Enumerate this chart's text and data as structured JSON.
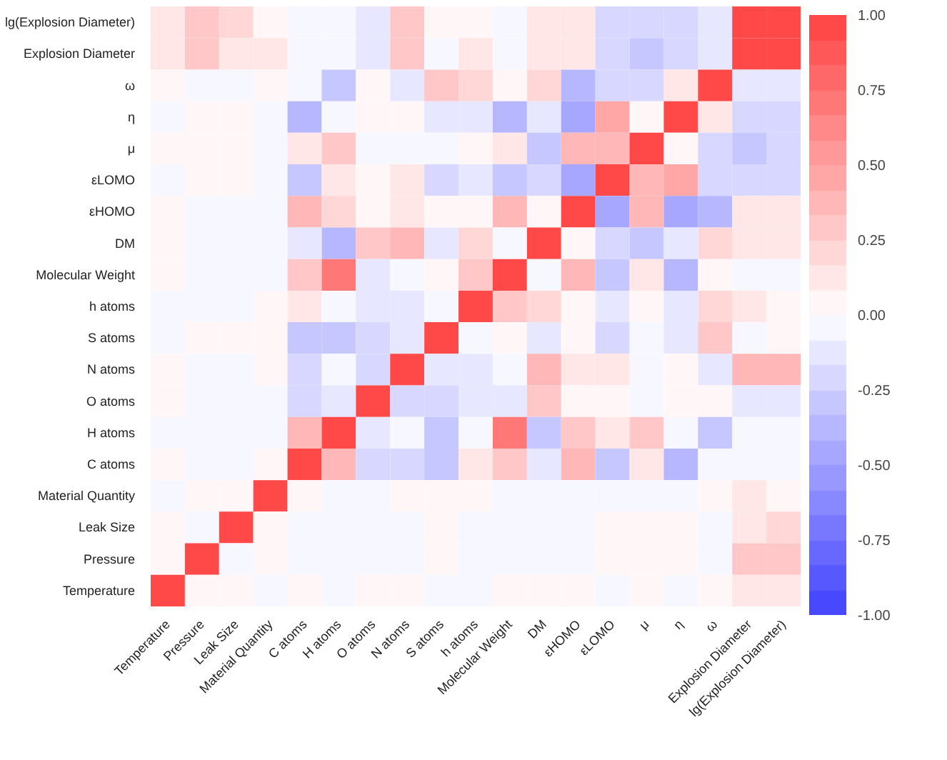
{
  "chart_data": {
    "type": "heatmap",
    "categories": [
      "Temperature",
      "Pressure",
      "Leak Size",
      "Material Quantity",
      "C atoms",
      "H atoms",
      "O atoms",
      "N atoms",
      "S atoms",
      "h atoms",
      "Molecular Weight",
      "DM",
      "εHOMO",
      "εLOMO",
      "μ",
      "η",
      "ω",
      "Explosion Diameter",
      "lg(Explosion Diameter)"
    ],
    "y_categories": [
      "lg(Explosion Diameter)",
      "Explosion Diameter",
      "ω",
      "η",
      "μ",
      "εLOMO",
      "εHOMO",
      "DM",
      "Molecular Weight",
      "h atoms",
      "S atoms",
      "N atoms",
      "O atoms",
      "H atoms",
      "C atoms",
      "Material Quantity",
      "Leak Size",
      "Pressure",
      "Temperature"
    ],
    "cells": [
      [
        0.13,
        0.29,
        0.21,
        0.04,
        -0.04,
        -0.04,
        -0.13,
        0.29,
        0.04,
        0.04,
        -0.04,
        0.13,
        0.13,
        -0.21,
        -0.21,
        -0.21,
        -0.13,
        0.92,
        1
      ],
      [
        0.13,
        0.29,
        0.13,
        0.13,
        -0.04,
        -0.04,
        -0.13,
        0.29,
        -0.04,
        0.13,
        -0.04,
        0.13,
        0.13,
        -0.21,
        -0.29,
        -0.21,
        -0.13,
        1,
        0.92
      ],
      [
        0.04,
        -0.04,
        -0.04,
        0.04,
        -0.04,
        -0.29,
        0.04,
        -0.13,
        0.29,
        0.21,
        0.04,
        0.21,
        -0.38,
        -0.21,
        -0.21,
        0.13,
        1,
        -0.13,
        -0.13
      ],
      [
        -0.04,
        0.04,
        0.04,
        -0.04,
        -0.38,
        -0.04,
        0.04,
        0.04,
        -0.13,
        -0.13,
        -0.38,
        -0.13,
        -0.46,
        0.46,
        0.04,
        1,
        0.13,
        -0.21,
        -0.21
      ],
      [
        0.04,
        0.04,
        0.04,
        -0.04,
        0.13,
        0.29,
        -0.04,
        -0.04,
        -0.04,
        0.04,
        0.13,
        -0.29,
        0.38,
        0.38,
        1,
        0.04,
        -0.21,
        -0.29,
        -0.21
      ],
      [
        -0.04,
        0.04,
        0.04,
        -0.04,
        -0.29,
        0.13,
        0.04,
        0.13,
        -0.21,
        -0.13,
        -0.29,
        -0.21,
        -0.46,
        1,
        0.38,
        0.46,
        -0.21,
        -0.21,
        -0.21
      ],
      [
        0.04,
        -0.04,
        -0.04,
        -0.04,
        0.38,
        0.21,
        0.04,
        0.13,
        0.04,
        0.04,
        0.38,
        0.04,
        1,
        -0.46,
        0.38,
        -0.46,
        -0.38,
        0.13,
        0.13
      ],
      [
        0.04,
        -0.04,
        -0.04,
        -0.04,
        -0.13,
        -0.38,
        0.29,
        0.38,
        -0.13,
        0.21,
        -0.04,
        1,
        0.04,
        -0.21,
        -0.29,
        -0.13,
        0.21,
        0.13,
        0.13
      ],
      [
        0.04,
        -0.04,
        -0.04,
        -0.04,
        0.29,
        0.71,
        -0.13,
        -0.04,
        0.04,
        0.29,
        1,
        -0.04,
        0.38,
        -0.29,
        0.13,
        -0.38,
        0.04,
        -0.04,
        -0.04
      ],
      [
        -0.04,
        -0.04,
        -0.04,
        0.04,
        0.13,
        -0.04,
        -0.13,
        -0.13,
        -0.04,
        1,
        0.29,
        0.21,
        0.04,
        -0.13,
        0.04,
        -0.13,
        0.21,
        0.13,
        0.04
      ],
      [
        -0.04,
        0.04,
        0.04,
        0.04,
        -0.29,
        -0.29,
        -0.21,
        -0.13,
        1,
        -0.04,
        0.04,
        -0.13,
        0.04,
        -0.21,
        -0.04,
        -0.13,
        0.29,
        -0.04,
        0.04
      ],
      [
        0.04,
        -0.04,
        -0.04,
        0.04,
        -0.21,
        -0.04,
        -0.21,
        1,
        -0.13,
        -0.13,
        -0.04,
        0.38,
        0.13,
        0.13,
        -0.04,
        0.04,
        -0.13,
        0.38,
        0.38
      ],
      [
        0.04,
        -0.04,
        -0.04,
        -0.04,
        -0.21,
        -0.13,
        1,
        -0.21,
        -0.21,
        -0.13,
        -0.13,
        0.29,
        0.04,
        0.04,
        -0.04,
        0.04,
        0.04,
        -0.13,
        -0.13
      ],
      [
        -0.04,
        -0.04,
        -0.04,
        -0.04,
        0.38,
        1,
        -0.13,
        -0.04,
        -0.29,
        -0.04,
        0.71,
        -0.29,
        0.29,
        0.13,
        0.29,
        -0.04,
        -0.29,
        -0.04,
        -0.04
      ],
      [
        0.04,
        -0.04,
        -0.04,
        0.04,
        1,
        0.38,
        -0.21,
        -0.21,
        -0.29,
        0.13,
        0.29,
        -0.13,
        0.38,
        -0.29,
        0.13,
        -0.38,
        -0.04,
        -0.04,
        -0.04
      ],
      [
        -0.04,
        0.04,
        0.04,
        1,
        0.04,
        -0.04,
        -0.04,
        0.04,
        0.04,
        0.04,
        -0.04,
        -0.04,
        -0.04,
        -0.04,
        -0.04,
        -0.04,
        0.04,
        0.13,
        0.04
      ],
      [
        0.04,
        -0.04,
        1,
        0.04,
        -0.04,
        -0.04,
        -0.04,
        -0.04,
        0.04,
        -0.04,
        -0.04,
        -0.04,
        -0.04,
        0.04,
        0.04,
        0.04,
        -0.04,
        0.13,
        0.21
      ],
      [
        0.04,
        1,
        -0.04,
        0.04,
        -0.04,
        -0.04,
        -0.04,
        -0.04,
        0.04,
        -0.04,
        -0.04,
        -0.04,
        -0.04,
        0.04,
        0.04,
        0.04,
        -0.04,
        0.29,
        0.29
      ],
      [
        1,
        0.04,
        0.04,
        -0.04,
        0.04,
        -0.04,
        0.04,
        0.04,
        -0.04,
        -0.04,
        0.04,
        0.04,
        0.04,
        -0.04,
        0.04,
        -0.04,
        0.04,
        0.13,
        0.13
      ]
    ],
    "clim": [
      -1,
      1
    ],
    "cticks": [
      {
        "value": -1,
        "label": "-1.00"
      },
      {
        "value": -0.75,
        "label": "-0.75"
      },
      {
        "value": -0.5,
        "label": "-0.50"
      },
      {
        "value": -0.25,
        "label": "-0.25"
      },
      {
        "value": 0,
        "label": "0.00"
      },
      {
        "value": 0.25,
        "label": "0.25"
      },
      {
        "value": 0.5,
        "label": "0.50"
      },
      {
        "value": 0.75,
        "label": "0.75"
      },
      {
        "value": 1,
        "label": "1.00"
      }
    ]
  }
}
